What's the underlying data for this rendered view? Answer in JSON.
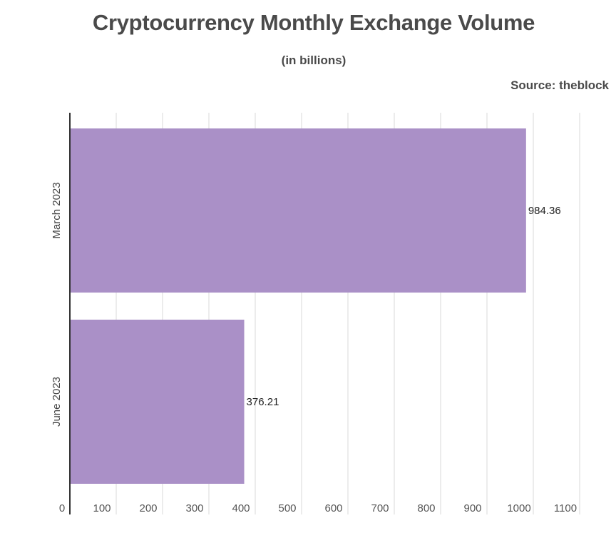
{
  "chart_data": {
    "type": "bar",
    "orientation": "horizontal",
    "title": "Cryptocurrency Monthly Exchange Volume",
    "subtitle": "(in billions)",
    "source": "Source: theblock",
    "categories": [
      "March 2023",
      "June 2023"
    ],
    "values": [
      984.36,
      376.21
    ],
    "data_labels": [
      "984.36",
      "376.21"
    ],
    "xlim": [
      0,
      1100
    ],
    "xticks": [
      0,
      100,
      200,
      300,
      400,
      500,
      600,
      700,
      800,
      900,
      1000,
      1100
    ],
    "grid": true,
    "bar_color": "#aa90c7"
  }
}
